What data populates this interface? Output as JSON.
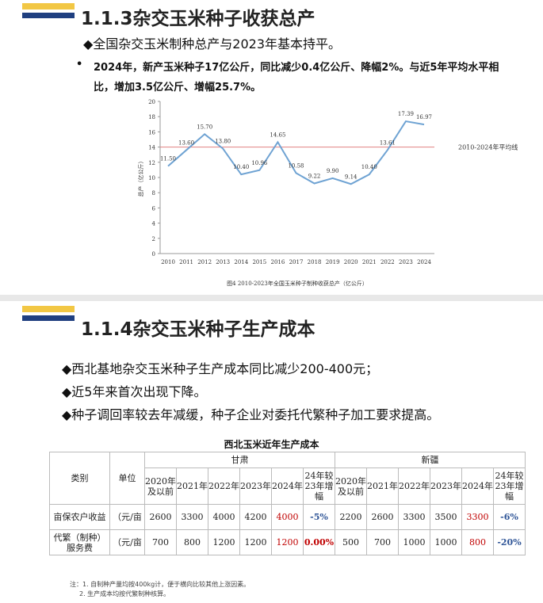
{
  "slide1": {
    "title": "1.1.3杂交玉米种子收获总产",
    "subtitle": "◆全国杂交玉米制种总产与2023年基本持平。",
    "bullet": "2024年，新产玉米种子17亿公斤，同比减少0.4亿公斤、降幅2%。与近5年平均水平相比，增加3.5亿公斤、增幅25.7%。",
    "caption": "图4 2010-2023年全国玉米种子制种收获总产（亿公斤）"
  },
  "chart_data": {
    "type": "line",
    "y_label": "总产（亿公斤）",
    "categories": [
      "2010",
      "2011",
      "2012",
      "2013",
      "2014",
      "2015",
      "2016",
      "2017",
      "2018",
      "2019",
      "2020",
      "2021",
      "2022",
      "2023",
      "2024"
    ],
    "values": [
      11.5,
      13.6,
      15.7,
      13.8,
      10.4,
      10.96,
      14.65,
      10.58,
      9.22,
      9.9,
      9.14,
      10.4,
      13.61,
      17.39,
      16.97
    ],
    "value_labels": [
      "11.50",
      "13.60",
      "15.70",
      "13.80",
      "10.40",
      "10.96",
      "14.65",
      "10.58",
      "9.22",
      "9.90",
      "9.14",
      "10.40",
      "13.61",
      "17.39",
      "16.97"
    ],
    "color": "#6fa3d3",
    "ylim": [
      0,
      20
    ],
    "yticks": [
      0,
      2,
      4,
      6,
      8,
      10,
      12,
      14,
      16,
      18,
      20
    ],
    "reference_line": {
      "label": "2010-2024年平均线",
      "value": 14,
      "color": "#e08080"
    }
  },
  "slide2": {
    "title": "1.1.4杂交玉米种子生产成本",
    "bullets": [
      "◆西北基地杂交玉米种子生产成本同比减少200-400元；",
      "◆近5年来首次出现下降。",
      "◆种子调回率较去年减缓，种子企业对委托代繁种子加工要求提高。"
    ],
    "table": {
      "title": "西北玉米近年生产成本",
      "header": [
        "类别",
        "单位",
        "甘肃",
        "新疆"
      ],
      "subheader": [
        "2020年及以前",
        "2021年",
        "2022年",
        "2023年",
        "2024年",
        "24年较23年增幅",
        "2020年及以前",
        "2021年",
        "2022年",
        "2023年",
        "2024年",
        "24年较23年增幅"
      ],
      "rows": [
        [
          "亩保农户收益",
          "（元/亩",
          "2600",
          "3300",
          "4000",
          "4200",
          "4000",
          "-5%",
          "2200",
          "2600",
          "3300",
          "3500",
          "3300",
          "-6%"
        ],
        [
          "代繁（制种）服务费",
          "（元/亩",
          "700",
          "800",
          "1200",
          "1200",
          "1200",
          "0.00%",
          "500",
          "700",
          "1000",
          "1000",
          "800",
          "-20%"
        ]
      ]
    },
    "notes": [
      "注：1. 自制种产量均按400kg计，便于横向比较其他上涨因素。",
      "2. 生产成本均按代繁制种核算。"
    ]
  }
}
